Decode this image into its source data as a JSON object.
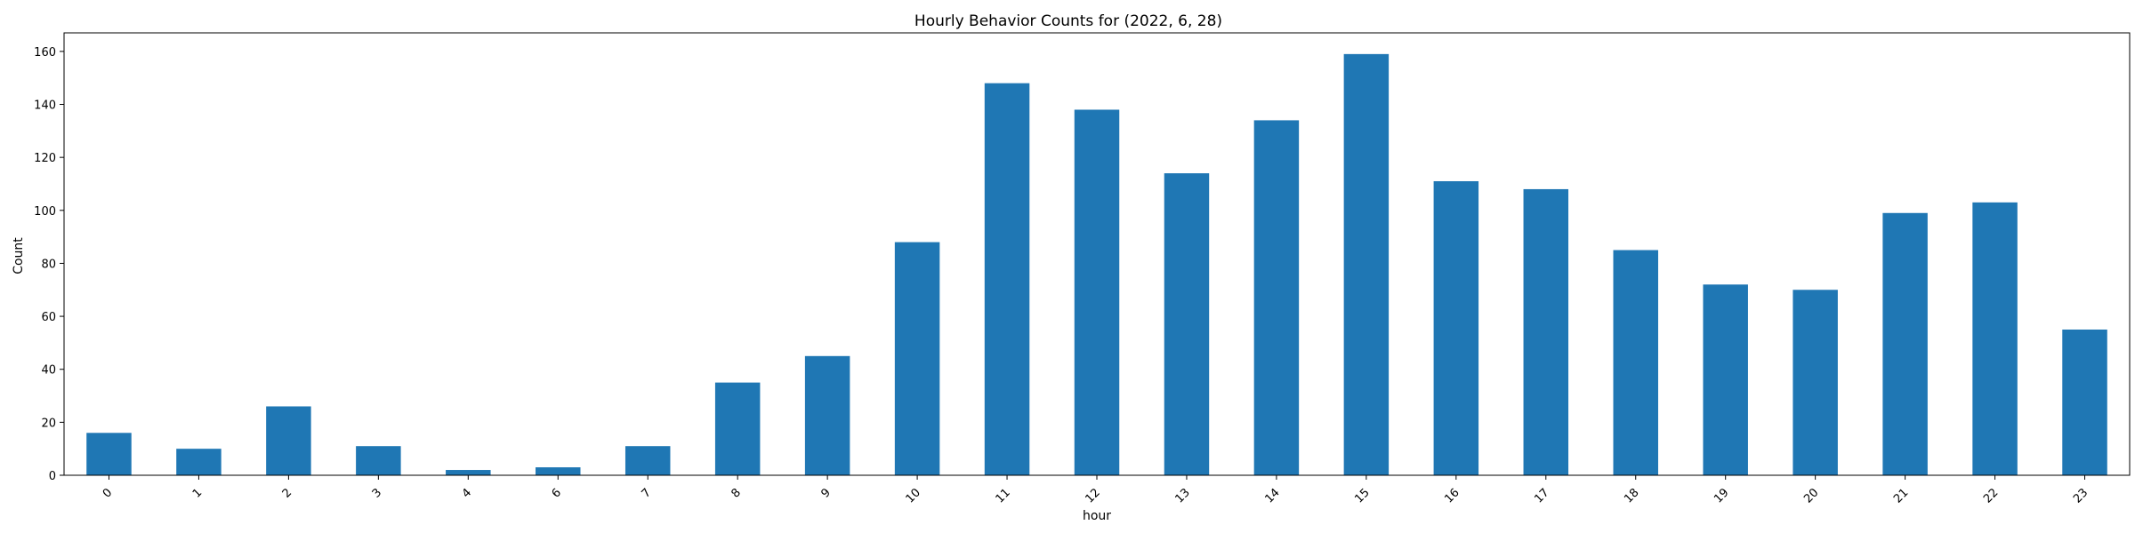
{
  "chart_data": {
    "type": "bar",
    "title": "Hourly Behavior Counts for (2022, 6, 28)",
    "xlabel": "hour",
    "ylabel": "Count",
    "categories": [
      "0",
      "1",
      "2",
      "3",
      "4",
      "6",
      "7",
      "8",
      "9",
      "10",
      "11",
      "12",
      "13",
      "14",
      "15",
      "16",
      "17",
      "18",
      "19",
      "20",
      "21",
      "22",
      "23"
    ],
    "values": [
      16,
      10,
      26,
      11,
      2,
      3,
      11,
      35,
      45,
      88,
      148,
      138,
      114,
      134,
      159,
      111,
      108,
      85,
      72,
      70,
      99,
      103,
      55
    ],
    "ylim": [
      0,
      167
    ],
    "yticks": [
      0,
      20,
      40,
      60,
      80,
      100,
      120,
      140,
      160
    ],
    "bar_color": "#1f77b4",
    "grid": false,
    "legend": "none"
  }
}
